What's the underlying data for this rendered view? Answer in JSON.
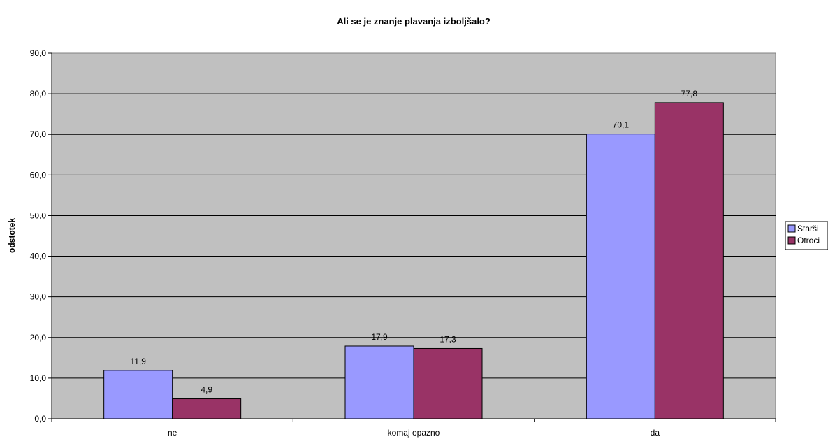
{
  "chart_data": {
    "type": "bar",
    "title": "Ali se je znanje plavanja izboljšalo?",
    "xlabel": "",
    "ylabel": "odstotek",
    "categories": [
      "ne",
      "komaj opazno",
      "da"
    ],
    "series": [
      {
        "name": "Starši",
        "values": [
          11.9,
          17.9,
          70.1
        ],
        "color": "#9999ff"
      },
      {
        "name": "Otroci",
        "values": [
          4.9,
          17.3,
          77.8
        ],
        "color": "#993366"
      }
    ],
    "ylim": [
      0,
      90
    ],
    "yticks": [
      "0,0",
      "10,0",
      "20,0",
      "30,0",
      "40,0",
      "50,0",
      "60,0",
      "70,0",
      "80,0",
      "90,0"
    ],
    "data_labels": [
      [
        "11,9",
        "17,9",
        "70,1"
      ],
      [
        "4,9",
        "17,3",
        "77,8"
      ]
    ],
    "plot_background": "#c0c0c0",
    "grid": true,
    "legend_position": "right"
  }
}
